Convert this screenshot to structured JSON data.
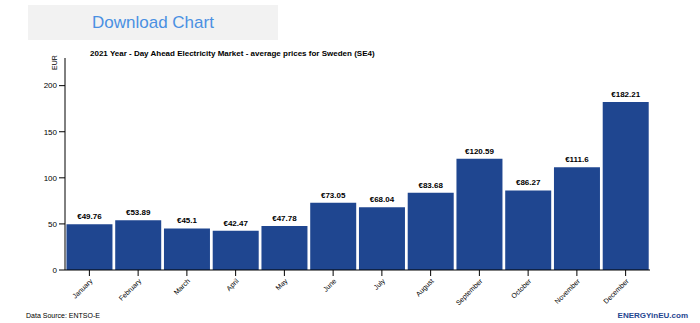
{
  "header": {
    "button": "Download Chart"
  },
  "chart_data": {
    "type": "bar",
    "title": "2021 Year - Day Ahead Electricity Market - average prices for Sweden (SE4)",
    "y_label": "EUR",
    "categories": [
      "January",
      "February",
      "March",
      "April",
      "May",
      "June",
      "July",
      "August",
      "September",
      "October",
      "November",
      "December"
    ],
    "values": [
      49.76,
      53.89,
      45.1,
      42.47,
      47.78,
      73.05,
      68.04,
      83.68,
      120.59,
      86.27,
      111.6,
      182.21
    ],
    "value_labels": [
      "€49.76",
      "€53.89",
      "€45.1",
      "€42.47",
      "€47.78",
      "€73.05",
      "€68.04",
      "€83.68",
      "€120.59",
      "€86.27",
      "€111.6",
      "€182.21"
    ],
    "color": "#1f4690",
    "ylim": [
      0,
      230
    ],
    "yticks": [
      0,
      50,
      100,
      150,
      200
    ],
    "grid": false,
    "data_labels": true
  },
  "footer": {
    "source": "Data Source: ENTSO-E",
    "logo": "ENERGYinEU.com"
  }
}
